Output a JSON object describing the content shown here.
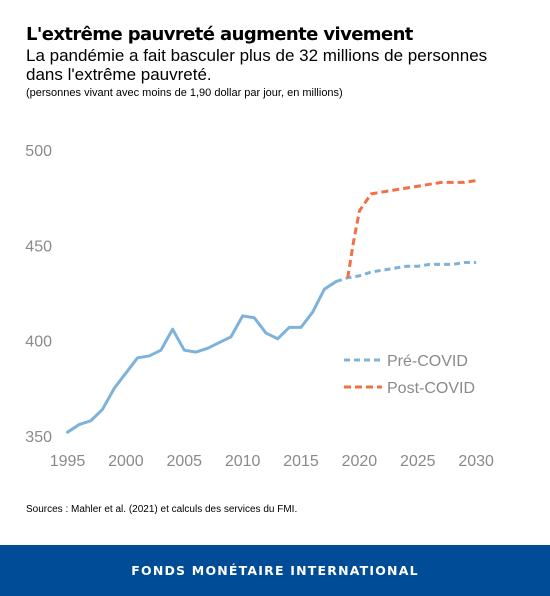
{
  "header": {
    "title": "L'extrême pauvreté augmente vivement",
    "subtitle": "La pandémie a fait basculer plus de 32 millions de personnes dans l'extrême pauvreté.",
    "note": "(personnes vivant avec moins de 1,90 dollar par jour, en millions)"
  },
  "source": "Sources : Mahler et al. (2021) et calculs des services du FMI.",
  "footer": {
    "label": "FONDS MONÉTAIRE INTERNATIONAL",
    "color": "#004c97"
  },
  "chart_data": {
    "type": "line",
    "title": "L'extrême pauvreté augmente vivement",
    "xlabel": "",
    "ylabel": "",
    "xlim": [
      1994.7,
      2030.5
    ],
    "ylim": [
      350,
      500
    ],
    "x_ticks": [
      "1995",
      "2000",
      "2005",
      "2010",
      "2015",
      "2020",
      "2025",
      "2030"
    ],
    "y_ticks": [
      "350",
      "400",
      "450",
      "500"
    ],
    "grid": false,
    "legend_position": "center-right",
    "series": [
      {
        "name": "Pré-COVID",
        "color": "#7eb2da",
        "style": "solid-then-dashed",
        "dash_from": 2018,
        "x": [
          1995,
          1996,
          1997,
          1998,
          1999,
          2000,
          2001,
          2002,
          2003,
          2004,
          2005,
          2006,
          2007,
          2008,
          2009,
          2010,
          2011,
          2012,
          2013,
          2014,
          2015,
          2016,
          2017,
          2018,
          2019,
          2020,
          2021,
          2022,
          2023,
          2024,
          2025,
          2026,
          2027,
          2028,
          2029,
          2030
        ],
        "values": [
          352,
          356,
          358,
          364,
          375,
          383,
          391,
          392,
          395,
          406,
          395,
          394,
          396,
          399,
          402,
          413,
          412,
          404,
          401,
          407,
          407,
          415,
          427,
          431,
          433,
          434,
          436,
          437,
          438,
          439,
          439,
          440,
          440,
          440,
          441,
          441
        ]
      },
      {
        "name": "Post-COVID",
        "color": "#f36f46",
        "style": "dashed",
        "x": [
          2019,
          2019.5,
          2020,
          2021,
          2022,
          2023,
          2024,
          2025,
          2026,
          2027,
          2028,
          2029,
          2030
        ],
        "values": [
          433,
          452,
          468,
          477,
          478,
          479,
          480,
          481,
          482,
          483,
          483,
          483,
          484
        ]
      }
    ]
  }
}
